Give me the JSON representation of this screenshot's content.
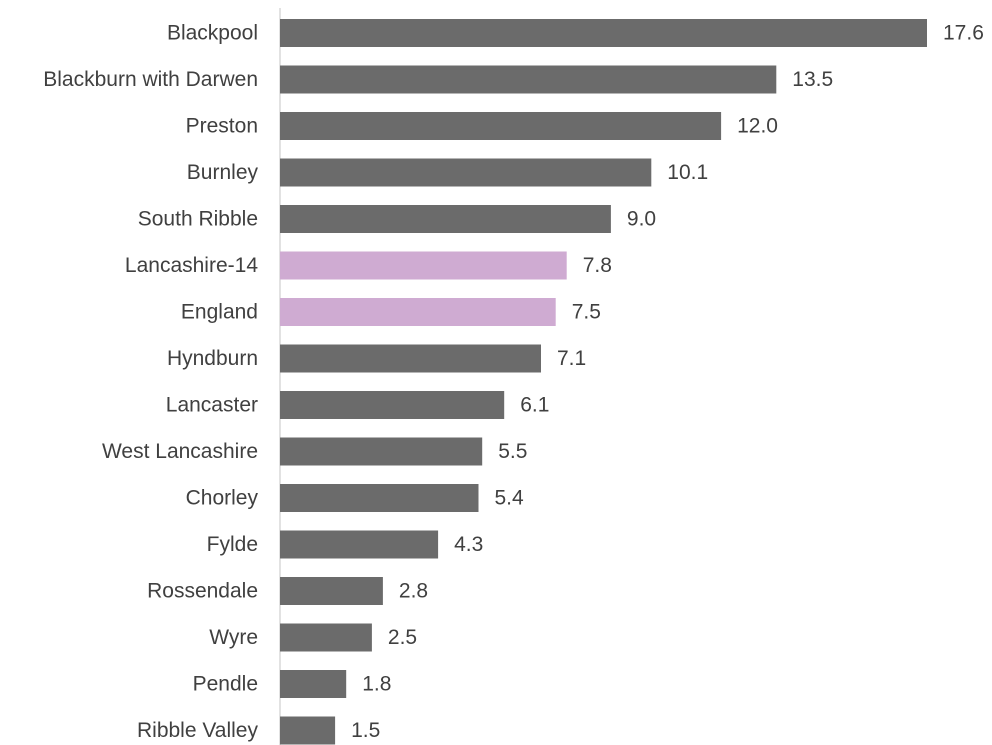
{
  "chart_data": {
    "type": "bar",
    "orientation": "horizontal",
    "categories": [
      "Blackpool",
      "Blackburn with Darwen",
      "Preston",
      "Burnley",
      "South Ribble",
      "Lancashire-14",
      "England",
      "Hyndburn",
      "Lancaster",
      "West Lancashire",
      "Chorley",
      "Fylde",
      "Rossendale",
      "Wyre",
      "Pendle",
      "Ribble Valley"
    ],
    "values": [
      17.6,
      13.5,
      12.0,
      10.1,
      9.0,
      7.8,
      7.5,
      7.1,
      6.1,
      5.5,
      5.4,
      4.3,
      2.8,
      2.5,
      1.8,
      1.5
    ],
    "value_labels": [
      "17.6",
      "13.5",
      "12.0",
      "10.1",
      "9.0",
      "7.8",
      "7.5",
      "7.1",
      "6.1",
      "5.5",
      "5.4",
      "4.3",
      "2.8",
      "2.5",
      "1.8",
      "1.5"
    ],
    "highlighted": [
      "Lancashire-14",
      "England"
    ],
    "colors": {
      "default": "#6b6b6b",
      "highlight": "#cfabd2",
      "axis": "#d9d9d9",
      "text": "#404040"
    },
    "title": "",
    "xlabel": "",
    "ylabel": "",
    "xlim": [
      0,
      17.6
    ],
    "grid": false,
    "legend": "none"
  }
}
